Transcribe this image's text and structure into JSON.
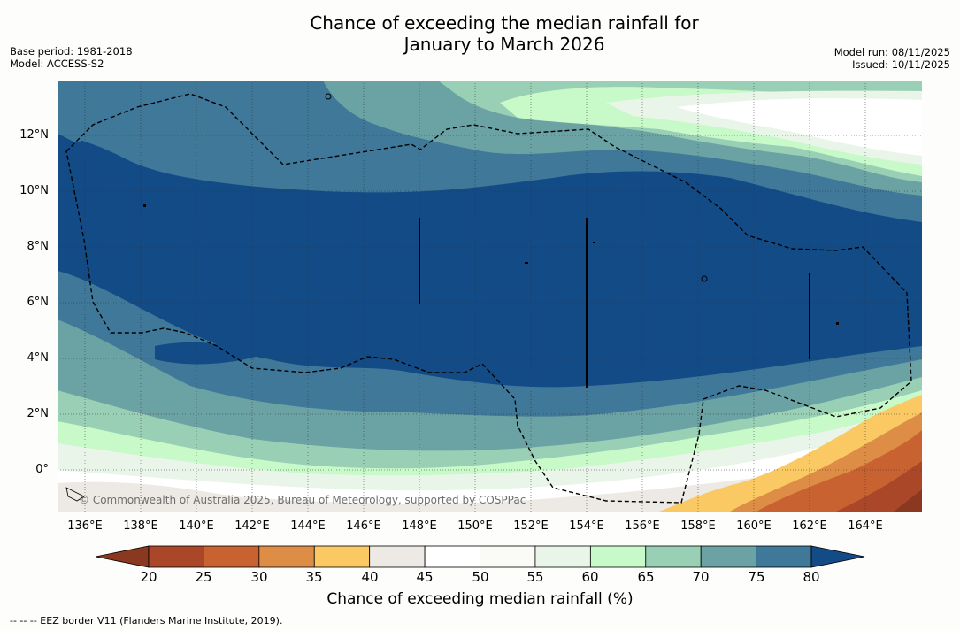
{
  "title_line1": "Chance of exceeding the median rainfall for",
  "title_line2": "January to March 2026",
  "meta_left": {
    "base_period": "Base period: 1981-2018",
    "model": "Model: ACCESS-S2"
  },
  "meta_right": {
    "model_run": "Model run: 08/11/2025",
    "issued": "Issued: 10/11/2025"
  },
  "lat_labels": [
    "12°N",
    "10°N",
    "8°N",
    "6°N",
    "4°N",
    "2°N",
    "0°"
  ],
  "lon_labels": [
    "136°E",
    "138°E",
    "140°E",
    "142°E",
    "144°E",
    "146°E",
    "148°E",
    "150°E",
    "152°E",
    "154°E",
    "156°E",
    "158°E",
    "160°E",
    "162°E",
    "164°E"
  ],
  "copyright": "© Commonwealth of Australia 2025, Bureau of Meteorology, supported by COSPPac",
  "colorbar": {
    "ticks": [
      "20",
      "25",
      "30",
      "35",
      "40",
      "45",
      "50",
      "55",
      "60",
      "65",
      "70",
      "75",
      "80"
    ],
    "colors": [
      "#8b3820",
      "#ab4729",
      "#c96231",
      "#dd8d45",
      "#fbc964",
      "#ede9e4",
      "#ffffff",
      "#fafaf7",
      "#eaf5ea",
      "#c8f9c8",
      "#99cfb5",
      "#6ba2a3",
      "#3f7899",
      "#124b86"
    ],
    "label": "Chance of exceeding median rainfall (%)"
  },
  "footnote": "--  --  -- EEZ border V11 (Flanders Marine Institute, 2019)."
}
